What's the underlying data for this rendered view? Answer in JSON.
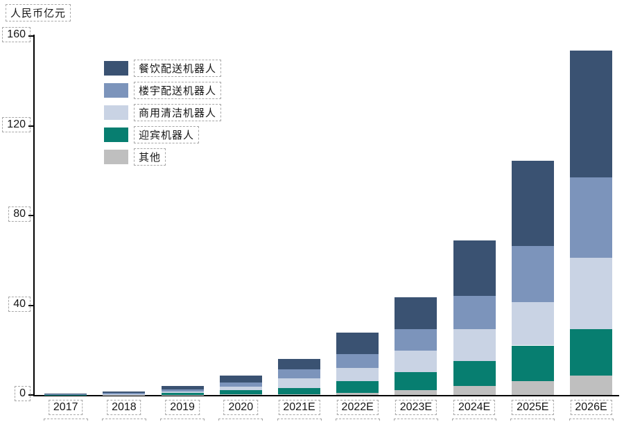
{
  "chart_data": {
    "type": "bar",
    "stacked": true,
    "unit_label": "人民币亿元",
    "categories": [
      "2017",
      "2018",
      "2019",
      "2020",
      "2021E",
      "2022E",
      "2023E",
      "2024E",
      "2025E",
      "2026E"
    ],
    "series": [
      {
        "name": "餐饮配送机器人",
        "color": "#3A5272",
        "values": [
          0.2,
          0.6,
          1.4,
          2.9,
          4.8,
          9.5,
          14.2,
          24.8,
          37.9,
          56.5
        ]
      },
      {
        "name": "楼宇配送机器人",
        "color": "#7C94BB",
        "values": [
          0.1,
          0.5,
          0.9,
          2.0,
          4.0,
          6.2,
          9.6,
          14.8,
          24.9,
          35.8
        ]
      },
      {
        "name": "商用清洁机器人",
        "color": "#C9D3E4",
        "values": [
          0.1,
          0.2,
          0.7,
          1.6,
          4.1,
          5.9,
          9.6,
          14.1,
          19.4,
          31.8
        ]
      },
      {
        "name": "迎宾机器人",
        "color": "#077E70",
        "values": [
          0.1,
          0.15,
          0.8,
          1.8,
          2.8,
          5.4,
          7.9,
          11.3,
          15.9,
          20.6
        ]
      },
      {
        "name": "其他",
        "color": "#BFBFBF",
        "values": [
          0.05,
          0.05,
          0.1,
          0.3,
          0.4,
          0.8,
          2.2,
          3.9,
          6.2,
          8.7
        ]
      }
    ],
    "totals": [
      0.55,
      1.5,
      3.9,
      8.6,
      16.1,
      27.8,
      43.5,
      68.9,
      104.3,
      153.4
    ],
    "ylim": [
      0,
      160
    ],
    "yticks": [
      0,
      40,
      80,
      120,
      160
    ],
    "xlabel": "",
    "ylabel": "人民币亿元",
    "grid": false,
    "legend_position": "upper-left-inside",
    "axis_color": "#000000",
    "annotation_box_color": "#A6A6A6"
  }
}
